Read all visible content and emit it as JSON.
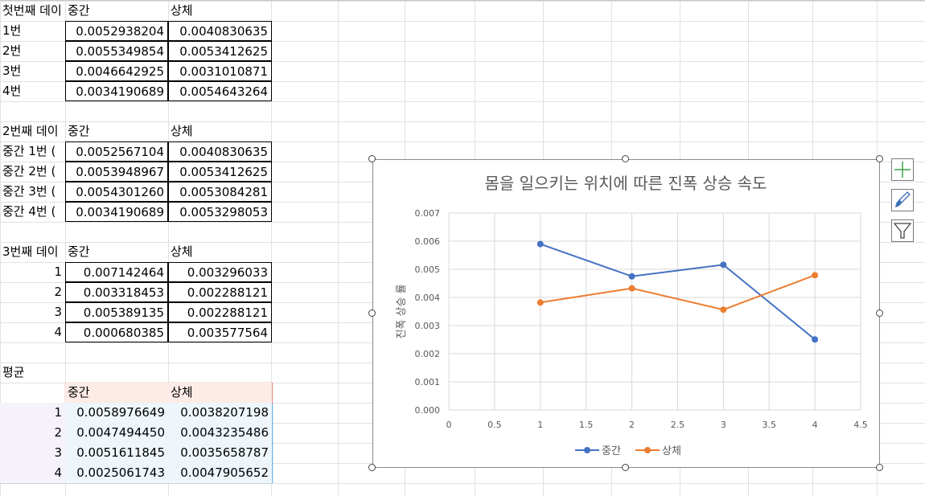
{
  "sheet": {
    "block1": {
      "title": "첫번째 데이",
      "col1": "중간",
      "col2": "상체",
      "rows": [
        {
          "label": "1번",
          "v1": "0.0052938204",
          "v2": "0.0040830635"
        },
        {
          "label": "2번",
          "v1": "0.0055349854",
          "v2": "0.0053412625"
        },
        {
          "label": "3번",
          "v1": "0.0046642925",
          "v2": "0.0031010871"
        },
        {
          "label": "4번",
          "v1": "0.0034190689",
          "v2": "0.0054643264"
        }
      ]
    },
    "block2": {
      "title": "2번째 데이",
      "col1": "중간",
      "col2": "상체",
      "rows": [
        {
          "label": "중간 1번 (",
          "v1": "0.0052567104",
          "v2": "0.0040830635"
        },
        {
          "label": "중간 2번 (",
          "v1": "0.0053948967",
          "v2": "0.0053412625"
        },
        {
          "label": "중간 3번 (",
          "v1": "0.0054301260",
          "v2": "0.0053084281"
        },
        {
          "label": "중간 4번 (",
          "v1": "0.0034190689",
          "v2": "0.0053298053"
        }
      ]
    },
    "block3": {
      "title": "3번째 데이",
      "col1": "중간",
      "col2": "상체",
      "rows": [
        {
          "label": "1",
          "v1": "0.007142464",
          "v2": "0.003296033"
        },
        {
          "label": "2",
          "v1": "0.003318453",
          "v2": "0.002288121"
        },
        {
          "label": "3",
          "v1": "0.005389135",
          "v2": "0.002288121"
        },
        {
          "label": "4",
          "v1": "0.000680385",
          "v2": "0.003577564"
        }
      ]
    },
    "block4": {
      "title": "평균",
      "col1": "중간",
      "col2": "상체",
      "rows": [
        {
          "label": "1",
          "v1": "0.0058976649",
          "v2": "0.0038207198"
        },
        {
          "label": "2",
          "v1": "0.0047494450",
          "v2": "0.0043235486"
        },
        {
          "label": "3",
          "v1": "0.0051611845",
          "v2": "0.0035658787"
        },
        {
          "label": "4",
          "v1": "0.0025061743",
          "v2": "0.0047905652"
        }
      ]
    }
  },
  "chart_toolbar": {
    "add_icon": "plus-icon",
    "style_icon": "brush-icon",
    "filter_icon": "filter-icon"
  },
  "colors": {
    "series1": "#4472c4",
    "series2": "#ed7d31",
    "gridline": "#d9d9d9",
    "cell_gridline": "#e1e1e1"
  },
  "chart_data": {
    "type": "scatter",
    "title": "몸을 일으키는 위치에 따른 진폭 상승 속도",
    "xlabel": "",
    "ylabel": "진폭 상승 률",
    "xlim": [
      0,
      4.5
    ],
    "ylim": [
      0,
      0.007
    ],
    "x_ticks": [
      "0",
      "0.5",
      "1",
      "1.5",
      "2",
      "2.5",
      "3",
      "3.5",
      "4",
      "4.5"
    ],
    "y_ticks": [
      "0.000",
      "0.001",
      "0.002",
      "0.003",
      "0.004",
      "0.005",
      "0.006",
      "0.007"
    ],
    "grid": true,
    "legend_position": "bottom",
    "series": [
      {
        "name": "중간",
        "x": [
          1,
          2,
          3,
          4
        ],
        "y": [
          0.0058976649,
          0.004749445,
          0.0051611845,
          0.0025061743
        ]
      },
      {
        "name": "상체",
        "x": [
          1,
          2,
          3,
          4
        ],
        "y": [
          0.0038207198,
          0.0043235486,
          0.0035658787,
          0.0047905652
        ]
      }
    ]
  }
}
